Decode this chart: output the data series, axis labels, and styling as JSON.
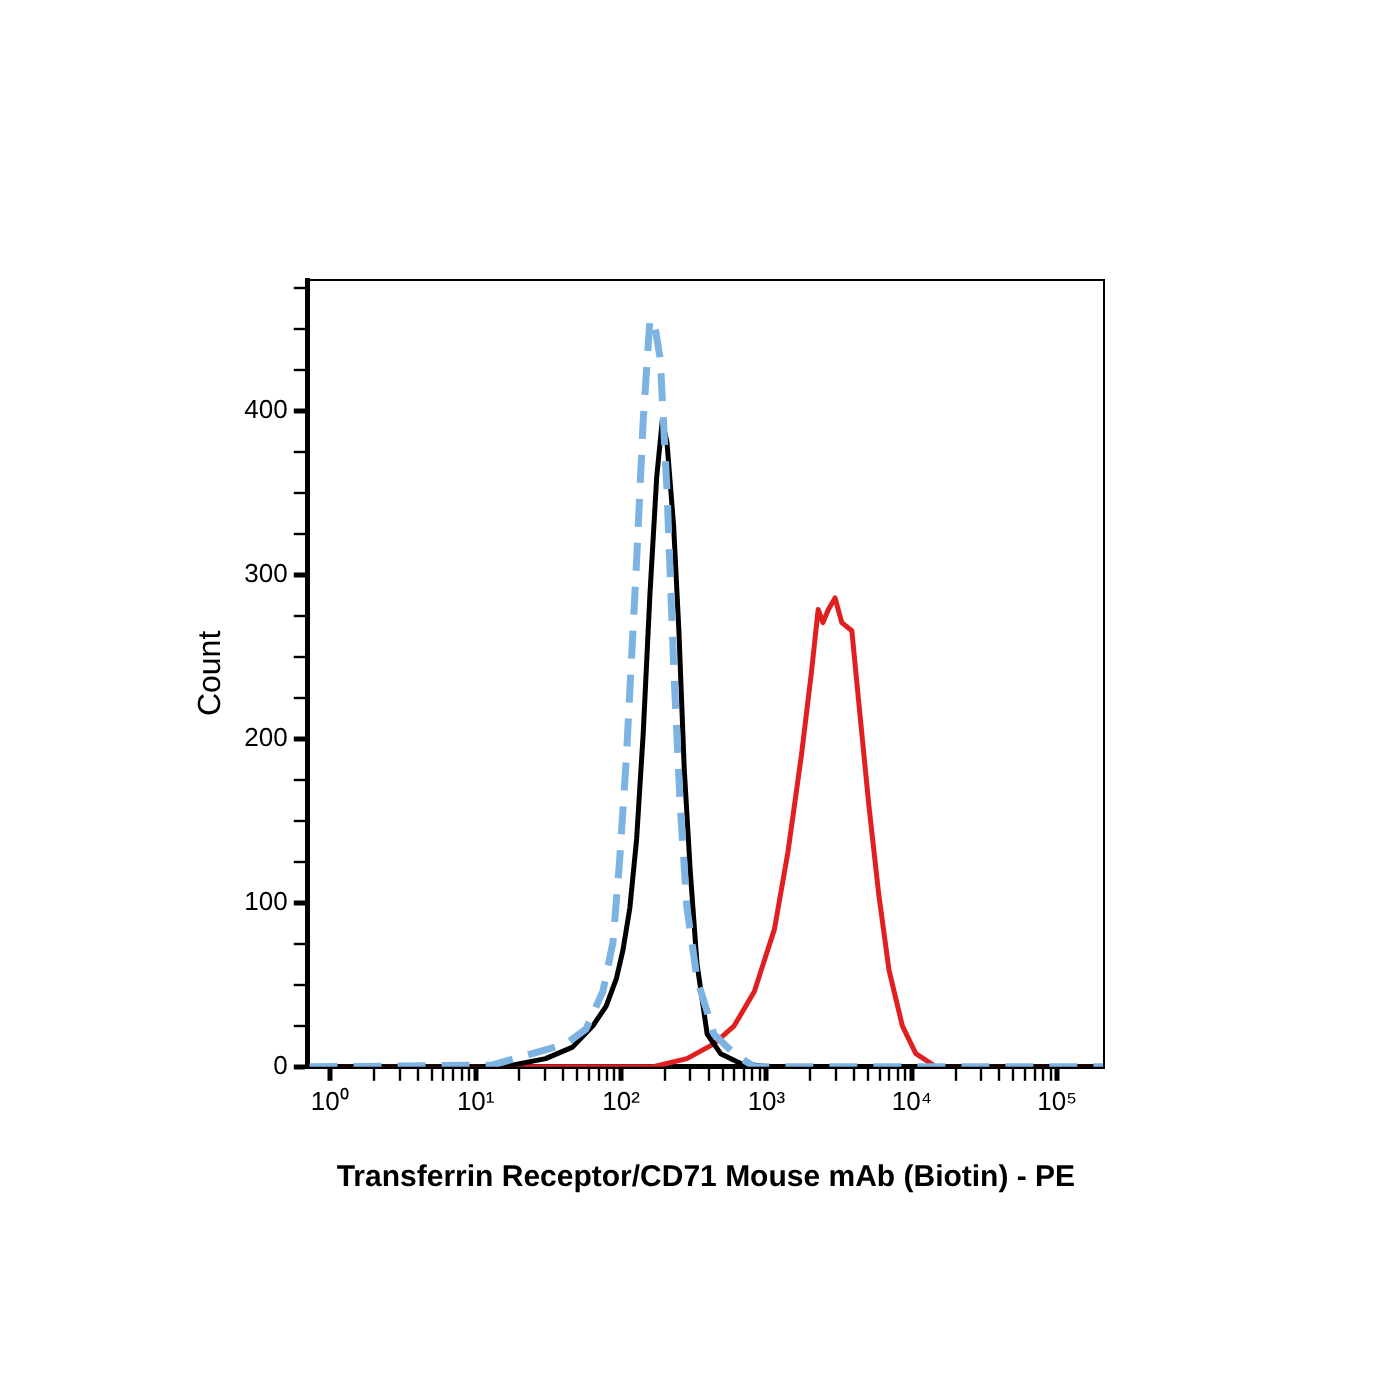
{
  "chart_data": {
    "type": "line",
    "xlabel": "Transferrin Receptor/CD71 Mouse mAb (Biotin) - PE",
    "ylabel": "Count",
    "log": "x",
    "xlim": [
      0.72,
      210000
    ],
    "ylim": [
      0,
      480
    ],
    "xticks": [
      {
        "value": 1,
        "label": "10⁰"
      },
      {
        "value": 10,
        "label": "10¹"
      },
      {
        "value": 100,
        "label": "10²"
      },
      {
        "value": 1000,
        "label": "10³"
      },
      {
        "value": 10000,
        "label": "10⁴"
      },
      {
        "value": 100000,
        "label": "10⁵"
      },
      {
        "value": 2,
        "label": null
      },
      {
        "value": 3,
        "label": null
      },
      {
        "value": 4,
        "label": null
      },
      {
        "value": 5,
        "label": null
      },
      {
        "value": 6,
        "label": null
      },
      {
        "value": 7,
        "label": null
      },
      {
        "value": 8,
        "label": null
      },
      {
        "value": 9,
        "label": null
      },
      {
        "value": 20,
        "label": null
      },
      {
        "value": 30,
        "label": null
      },
      {
        "value": 40,
        "label": null
      },
      {
        "value": 50,
        "label": null
      },
      {
        "value": 60,
        "label": null
      },
      {
        "value": 70,
        "label": null
      },
      {
        "value": 80,
        "label": null
      },
      {
        "value": 90,
        "label": null
      },
      {
        "value": 200,
        "label": null
      },
      {
        "value": 300,
        "label": null
      },
      {
        "value": 400,
        "label": null
      },
      {
        "value": 500,
        "label": null
      },
      {
        "value": 600,
        "label": null
      },
      {
        "value": 700,
        "label": null
      },
      {
        "value": 800,
        "label": null
      },
      {
        "value": 900,
        "label": null
      },
      {
        "value": 2000,
        "label": null
      },
      {
        "value": 3000,
        "label": null
      },
      {
        "value": 4000,
        "label": null
      },
      {
        "value": 5000,
        "label": null
      },
      {
        "value": 6000,
        "label": null
      },
      {
        "value": 7000,
        "label": null
      },
      {
        "value": 8000,
        "label": null
      },
      {
        "value": 9000,
        "label": null
      },
      {
        "value": 20000,
        "label": null
      },
      {
        "value": 30000,
        "label": null
      },
      {
        "value": 40000,
        "label": null
      },
      {
        "value": 50000,
        "label": null
      },
      {
        "value": 60000,
        "label": null
      },
      {
        "value": 70000,
        "label": null
      },
      {
        "value": 80000,
        "label": null
      },
      {
        "value": 90000,
        "label": null
      }
    ],
    "yticks": [
      0,
      100,
      200,
      300,
      400,
      {
        "value": 25,
        "label": null
      },
      {
        "value": 50,
        "label": null
      },
      {
        "value": 75,
        "label": null
      },
      {
        "value": 125,
        "label": null
      },
      {
        "value": 150,
        "label": null
      },
      {
        "value": 175,
        "label": null
      },
      {
        "value": 225,
        "label": null
      },
      {
        "value": 250,
        "label": null
      },
      {
        "value": 275,
        "label": null
      },
      {
        "value": 325,
        "label": null
      },
      {
        "value": 350,
        "label": null
      },
      {
        "value": 375,
        "label": null
      },
      {
        "value": 425,
        "label": null
      },
      {
        "value": 450,
        "label": null
      },
      {
        "value": 475,
        "label": null
      }
    ],
    "series": [
      {
        "color": "#7db3e3",
        "line_style": "dashed",
        "x": [
          0.72,
          12.9,
          24.5,
          41.7,
          57.4,
          75,
          88,
          98,
          109,
          128,
          142,
          158,
          170,
          186,
          207,
          230,
          255,
          284,
          333,
          435,
          600,
          826,
          210000
        ],
        "values": [
          0,
          1,
          8,
          14,
          23,
          46,
          76,
          127,
          190,
          309,
          394,
          456,
          453,
          432,
          352,
          245,
          160,
          97,
          54,
          20,
          8,
          0,
          0
        ]
      },
      {
        "color": "#000000",
        "line_style": "solid",
        "x": [
          0.72,
          10.4,
          17.8,
          30.3,
          46.4,
          64,
          79,
          93,
          103,
          115,
          128,
          142,
          158,
          176,
          192,
          207,
          230,
          250,
          272,
          300,
          333,
          391,
          484,
          666,
          1020,
          210000
        ],
        "values": [
          0,
          0,
          1,
          5,
          12,
          25,
          37,
          54,
          71,
          97,
          139,
          203,
          288,
          360,
          394,
          381,
          330,
          266,
          182,
          118,
          63,
          20,
          8,
          2,
          0,
          0
        ]
      },
      {
        "color": "#e02020",
        "line_style": "solid",
        "x": [
          0.72,
          167,
          284,
          435,
          600,
          826,
          1136,
          1406,
          1741,
          2042,
          2270,
          2449,
          2668,
          2966,
          3300,
          3870,
          4300,
          5060,
          5930,
          6970,
          8610,
          10660,
          14690,
          210000
        ],
        "values": [
          0,
          0,
          5,
          14,
          25,
          46,
          84,
          131,
          190,
          241,
          279,
          271,
          279,
          286,
          271,
          266,
          224,
          160,
          105,
          59,
          25,
          8,
          0,
          0
        ]
      }
    ]
  }
}
